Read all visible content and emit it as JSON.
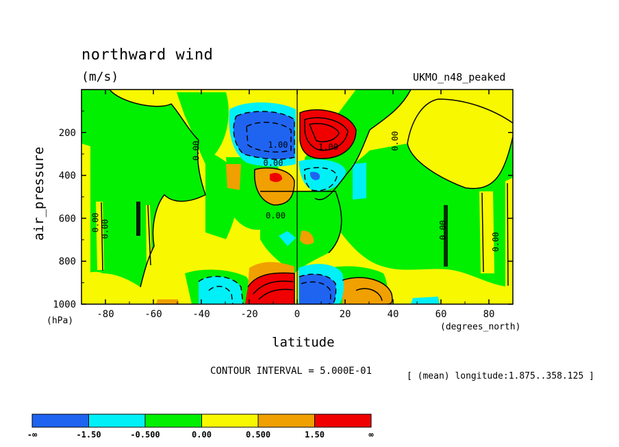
{
  "header": {
    "title": "northward wind",
    "units": "(m/s)",
    "model": "UKMO_n48_peaked"
  },
  "footer": {
    "contour_interval": "CONTOUR INTERVAL = 5.000E-01",
    "mean_note": "[ (mean) longitude:1.875..358.125 ]"
  },
  "colors": {
    "blue": "#1f64f0",
    "cyan": "#00f0f8",
    "green": "#00f000",
    "yellow": "#f8f800",
    "orange": "#f0a000",
    "red": "#f00000"
  },
  "chart_data": {
    "type": "heatmap",
    "title": "northward wind",
    "variable_units": "(m/s)",
    "xlabel": "latitude",
    "ylabel": "air_pressure",
    "x_unit_label": "(degrees_north)",
    "y_unit_label": "(hPa)",
    "xlim": [
      -90,
      90
    ],
    "ylim": [
      1000,
      0
    ],
    "x_ticks": [
      -80,
      -60,
      -40,
      -20,
      0,
      20,
      40,
      60,
      80
    ],
    "y_ticks": [
      200,
      400,
      600,
      800,
      1000
    ],
    "colorbar": {
      "bins": [
        "blue",
        "cyan",
        "green",
        "yellow",
        "orange",
        "red"
      ],
      "labels": [
        "-∞",
        "-1.50",
        "-0.500",
        "0.00",
        "0.500",
        "1.50",
        "∞"
      ]
    },
    "contour_labels": [
      {
        "text": "0.00",
        "lat": -83,
        "p": 620,
        "rotate": -90
      },
      {
        "text": "0.00",
        "lat": -79,
        "p": 650,
        "rotate": -90
      },
      {
        "text": "0.00",
        "lat": -41,
        "p": 285,
        "rotate": -90
      },
      {
        "text": "1.00",
        "lat": -8,
        "p": 270,
        "rotate": 0
      },
      {
        "text": "0.00",
        "lat": -10,
        "p": 355,
        "rotate": 0
      },
      {
        "text": "1.00",
        "lat": 13,
        "p": 280,
        "rotate": 0
      },
      {
        "text": "0.00",
        "lat": -9,
        "p": 600,
        "rotate": 0
      },
      {
        "text": "0.00",
        "lat": 42,
        "p": 240,
        "rotate": -90
      },
      {
        "text": "0.00",
        "lat": 62,
        "p": 655,
        "rotate": -90
      },
      {
        "text": "0.00",
        "lat": 84,
        "p": 710,
        "rotate": -90
      }
    ],
    "features": [
      {
        "name": "southern-upper-negative-cell",
        "lat": -10,
        "p": 230,
        "class": "blue",
        "peak": "< -1.50"
      },
      {
        "name": "northern-upper-positive-cell",
        "lat": 8,
        "p": 230,
        "class": "red",
        "peak": "> 1.50"
      },
      {
        "name": "southern-mid-positive-cell",
        "lat": -7,
        "p": 420,
        "class": "red",
        "peak": "> 1.50"
      },
      {
        "name": "northern-mid-negative-cell",
        "lat": 8,
        "p": 420,
        "class": "blue",
        "peak": "< -1.50"
      },
      {
        "name": "southern-lower-positive-cell",
        "lat": -7,
        "p": 950,
        "class": "red",
        "peak": "> 1.50"
      },
      {
        "name": "northern-lower-negative-cell",
        "lat": 8,
        "p": 950,
        "class": "blue",
        "peak": "< -1.50"
      },
      {
        "name": "southern-lower-negative-cell",
        "lat": -30,
        "p": 960,
        "class": "cyan",
        "peak": "-0.500 to -1.50"
      },
      {
        "name": "northern-lower-positive-cell",
        "lat": 30,
        "p": 960,
        "class": "orange",
        "peak": "0.500 to 1.50"
      }
    ]
  }
}
